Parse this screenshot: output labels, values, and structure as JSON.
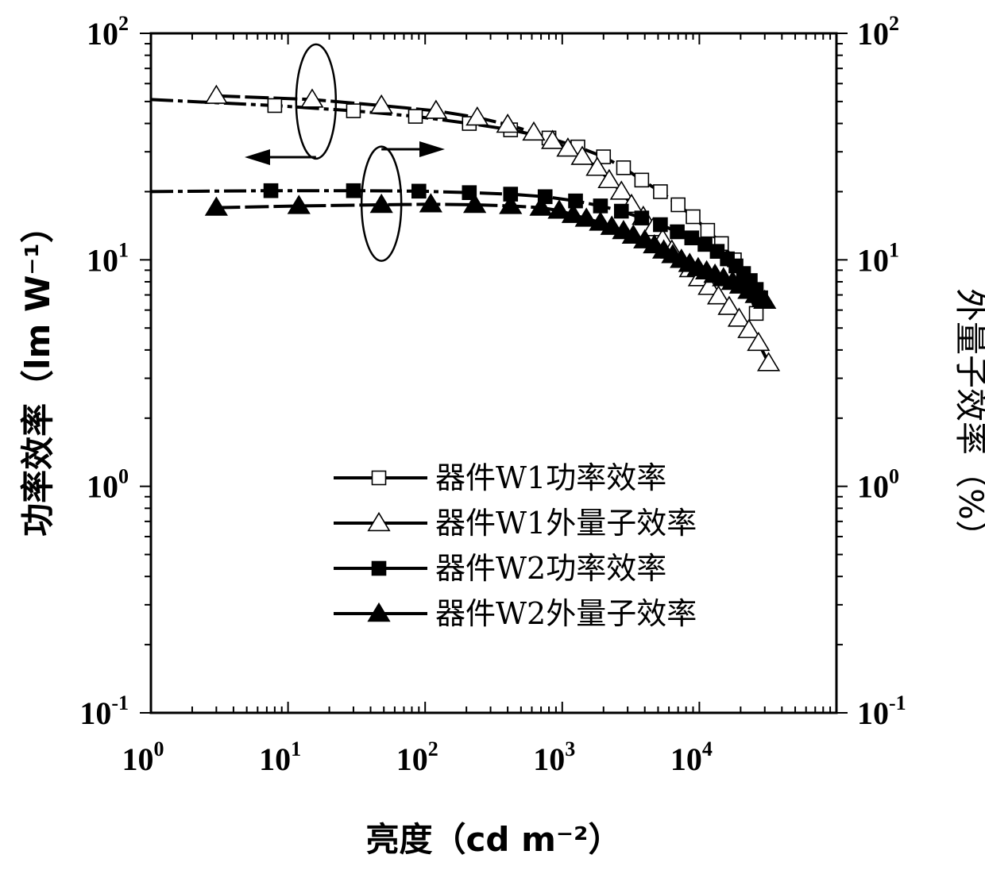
{
  "chart_data": {
    "type": "line",
    "title": "",
    "xlabel": "亮度（cd m⁻²）",
    "ylabel": "功率效率（lm W⁻¹）",
    "ylabel_right": "外量子效率（%）",
    "x_scale": "log",
    "y_scale": "log",
    "xlim": [
      1,
      100000
    ],
    "ylim": [
      0.1,
      100
    ],
    "ylim_right": [
      0.1,
      100
    ],
    "x_ticks": [
      {
        "base": "10",
        "exp": "0"
      },
      {
        "base": "10",
        "exp": "1"
      },
      {
        "base": "10",
        "exp": "2"
      },
      {
        "base": "10",
        "exp": "3"
      },
      {
        "base": "10",
        "exp": "4"
      }
    ],
    "y_ticks": [
      {
        "base": "10",
        "exp": "-1"
      },
      {
        "base": "10",
        "exp": "0"
      },
      {
        "base": "10",
        "exp": "1"
      },
      {
        "base": "10",
        "exp": "2"
      }
    ],
    "grid": false,
    "legend_position": "bottom-center",
    "series": [
      {
        "name": "器件W1功率效率",
        "marker": "open-square",
        "axis": "left",
        "x": [
          1,
          8,
          30,
          85,
          210,
          420,
          800,
          1300,
          2000,
          2800,
          3800,
          5200,
          7000,
          9000,
          11500,
          14500,
          18000,
          22000,
          26000
        ],
        "y": [
          51,
          48,
          45.5,
          43,
          40,
          37.5,
          34.5,
          31.5,
          28.5,
          25.5,
          22.5,
          20,
          17.5,
          15.5,
          13.5,
          11.8,
          10,
          8,
          5.8
        ]
      },
      {
        "name": "器件W1外量子效率",
        "marker": "open-triangle",
        "axis": "right",
        "x": [
          3,
          15,
          48,
          120,
          240,
          400,
          620,
          850,
          1100,
          1400,
          1800,
          2200,
          2700,
          3200,
          3900,
          4600,
          5400,
          6300,
          7400,
          8600,
          10000,
          11800,
          13800,
          16500,
          19500,
          23000,
          27000,
          32000
        ],
        "y": [
          53,
          51,
          48,
          45.5,
          42.5,
          39.5,
          36.5,
          33.5,
          31,
          28.5,
          25.5,
          22.5,
          20,
          17.5,
          15.5,
          13.8,
          12.3,
          11,
          10,
          9.1,
          8.3,
          7.6,
          6.9,
          6.2,
          5.5,
          4.9,
          4.3,
          3.5
        ]
      },
      {
        "name": "器件W2功率效率",
        "marker": "filled-square",
        "axis": "left",
        "x": [
          1,
          7.5,
          30,
          90,
          210,
          420,
          750,
          1250,
          1900,
          2700,
          3800,
          5200,
          6900,
          8800,
          11000,
          13500,
          16000,
          18500,
          21000,
          23500,
          26000,
          28000
        ],
        "y": [
          20,
          20.2,
          20.2,
          20.1,
          19.8,
          19.5,
          19,
          18.2,
          17.3,
          16.4,
          15.3,
          14.3,
          13.3,
          12.5,
          11.7,
          10.9,
          10.1,
          9.4,
          8.7,
          8.1,
          7.4,
          6.8
        ]
      },
      {
        "name": "器件W2外量子效率",
        "marker": "filled-triangle",
        "axis": "right",
        "x": [
          3,
          12,
          48,
          110,
          230,
          420,
          700,
          950,
          1200,
          1500,
          1900,
          2300,
          2800,
          3300,
          4000,
          4700,
          5500,
          6400,
          7400,
          8500,
          9800,
          11300,
          13000,
          15000,
          17500,
          20000,
          23000,
          26000,
          30000
        ],
        "y": [
          17,
          17.3,
          17.5,
          17.6,
          17.5,
          17.3,
          17,
          16.5,
          15.8,
          15.2,
          14.6,
          14,
          13.4,
          12.8,
          12.2,
          11.6,
          11,
          10.5,
          10,
          9.6,
          9.2,
          8.9,
          8.6,
          8.3,
          8,
          7.7,
          7.3,
          7,
          6.6
        ]
      }
    ],
    "annotations": [
      {
        "type": "ellipse-arrow",
        "points_to": "left-axis",
        "encircles": "器件W1"
      },
      {
        "type": "ellipse-arrow",
        "points_to": "right-axis",
        "encircles": "器件W2"
      }
    ]
  }
}
